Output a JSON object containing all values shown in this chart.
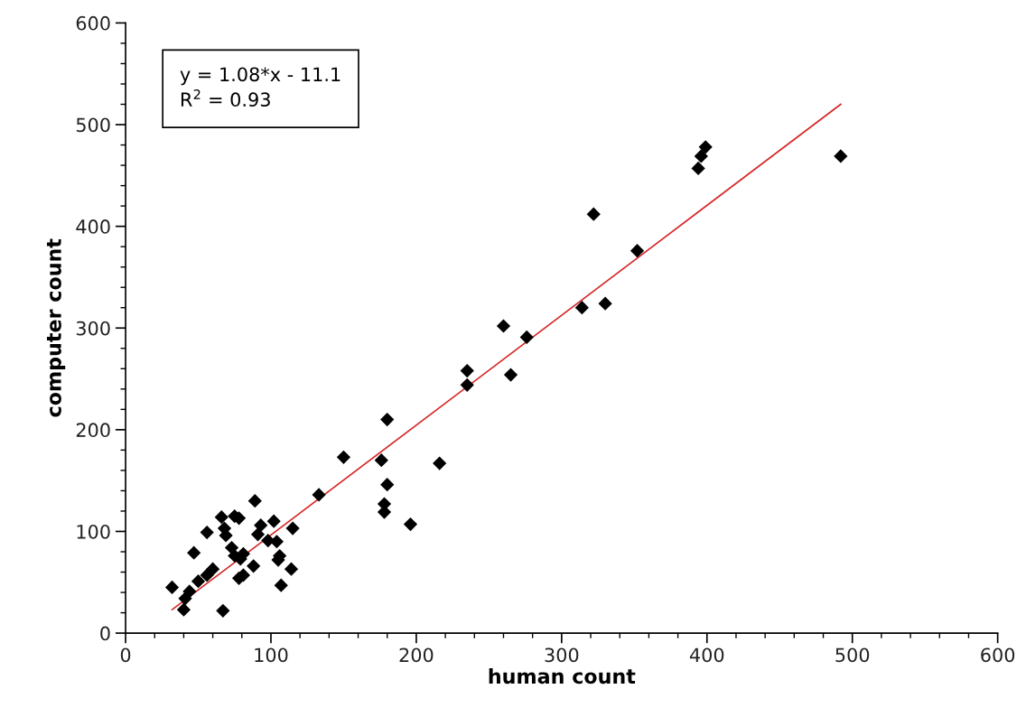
{
  "chart_data": {
    "type": "scatter",
    "xlabel": "human count",
    "ylabel": "computer count",
    "xlim": [
      0,
      600
    ],
    "ylim": [
      0,
      600
    ],
    "xticks": [
      0,
      100,
      200,
      300,
      400,
      500,
      600
    ],
    "yticks": [
      0,
      100,
      200,
      300,
      400,
      500,
      600
    ],
    "grid": false,
    "legend": false,
    "marker": "diamond",
    "annotations": [
      "y = 1.08*x - 11.1",
      "R$^{2}$ = 0.93"
    ],
    "series": [
      {
        "color": "#000000",
        "x": [
          89,
          66,
          75,
          78,
          56,
          68,
          69,
          93,
          102,
          115,
          47,
          73,
          75,
          91,
          98,
          104,
          81,
          79,
          106,
          105,
          114,
          88,
          81,
          78,
          60,
          56,
          50,
          32,
          44,
          41,
          40,
          67,
          107,
          235,
          235,
          265,
          180,
          150,
          176,
          216,
          180,
          178,
          178,
          196,
          133,
          399,
          396,
          394,
          492,
          322,
          352,
          314,
          330,
          260,
          276
        ],
        "values": [
          130,
          114,
          115,
          113,
          99,
          103,
          96,
          106,
          110,
          103,
          79,
          84,
          76,
          97,
          91,
          90,
          78,
          73,
          76,
          72,
          63,
          66,
          57,
          54,
          63,
          57,
          51,
          45,
          41,
          34,
          23,
          22,
          47,
          258,
          244,
          254,
          210,
          173,
          170,
          167,
          146,
          127,
          119,
          107,
          136,
          478,
          469,
          457,
          469,
          412,
          376,
          320,
          324,
          302,
          291
        ]
      },
      {
        "type": "line",
        "color": "#d62728",
        "marker": "none",
        "line_style": "solid",
        "x": [
          32,
          492
        ],
        "values": [
          23,
          520
        ]
      }
    ]
  }
}
